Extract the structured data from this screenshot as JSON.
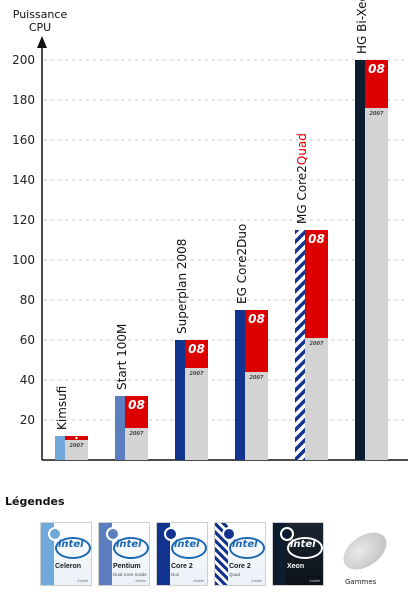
{
  "chart_data": {
    "type": "bar",
    "ylabel_line1": "Puissance",
    "ylabel_line2": "CPU",
    "ylim": [
      0,
      200
    ],
    "yticks": [
      20,
      40,
      60,
      80,
      100,
      120,
      140,
      160,
      180,
      200
    ],
    "grid": true,
    "year_old": "2007",
    "year_new": "08",
    "colors": {
      "base_2007": "#d3d3d3",
      "increase_08": "#dd0000",
      "tick_text": "#222222",
      "grid": "#c8c8c8"
    },
    "categories": [
      {
        "label": "Kimsufi",
        "label_accent": "",
        "value_2007": 10,
        "value_2008": 12,
        "range_color": "#6fa9dc",
        "pattern": "solid"
      },
      {
        "label": "Start 100M",
        "label_accent": "",
        "value_2007": 16,
        "value_2008": 32,
        "range_color": "#5b7fbe",
        "pattern": "solid"
      },
      {
        "label": "Superplan 2008",
        "label_accent": "",
        "value_2007": 46,
        "value_2008": 60,
        "range_color": "#13348e",
        "pattern": "solid"
      },
      {
        "label": "EG Core2Duo",
        "label_accent": "",
        "value_2007": 44,
        "value_2008": 75,
        "range_color": "#13348e",
        "pattern": "solid"
      },
      {
        "label": "MG Core2",
        "label_accent": "Quad",
        "value_2007": 61,
        "value_2008": 115,
        "range_color": "#13348e",
        "pattern": "stripes"
      },
      {
        "label": "HG Bi-Xeon Quadruple Coeur",
        "label_accent": "",
        "value_2007": 176,
        "value_2008": 200,
        "range_color": "#0b1d2e",
        "pattern": "solid"
      }
    ]
  },
  "legend": {
    "title": "Légendes",
    "intel_word": "intel",
    "inside_word": "inside",
    "items": [
      {
        "brand": "Celeron",
        "sub": "",
        "stripe": "#6fa9dc",
        "icon": "intel-celeron-icon",
        "dark": false
      },
      {
        "brand": "Pentium",
        "sub": "Dual-Core Inside",
        "stripe": "#5b7fbe",
        "icon": "intel-pentium-icon",
        "dark": false
      },
      {
        "brand": "Core 2",
        "sub": "Duo",
        "stripe": "#13348e",
        "icon": "intel-core2duo-icon",
        "dark": false
      },
      {
        "brand": "Core 2",
        "sub": "Quad",
        "stripe": "stripes",
        "icon": "intel-core2quad-icon",
        "dark": false
      },
      {
        "brand": "Xeon",
        "sub": "",
        "stripe": "#0b1d2e",
        "icon": "intel-xeon-icon",
        "dark": true
      }
    ],
    "gammes_label": "Gammes"
  }
}
